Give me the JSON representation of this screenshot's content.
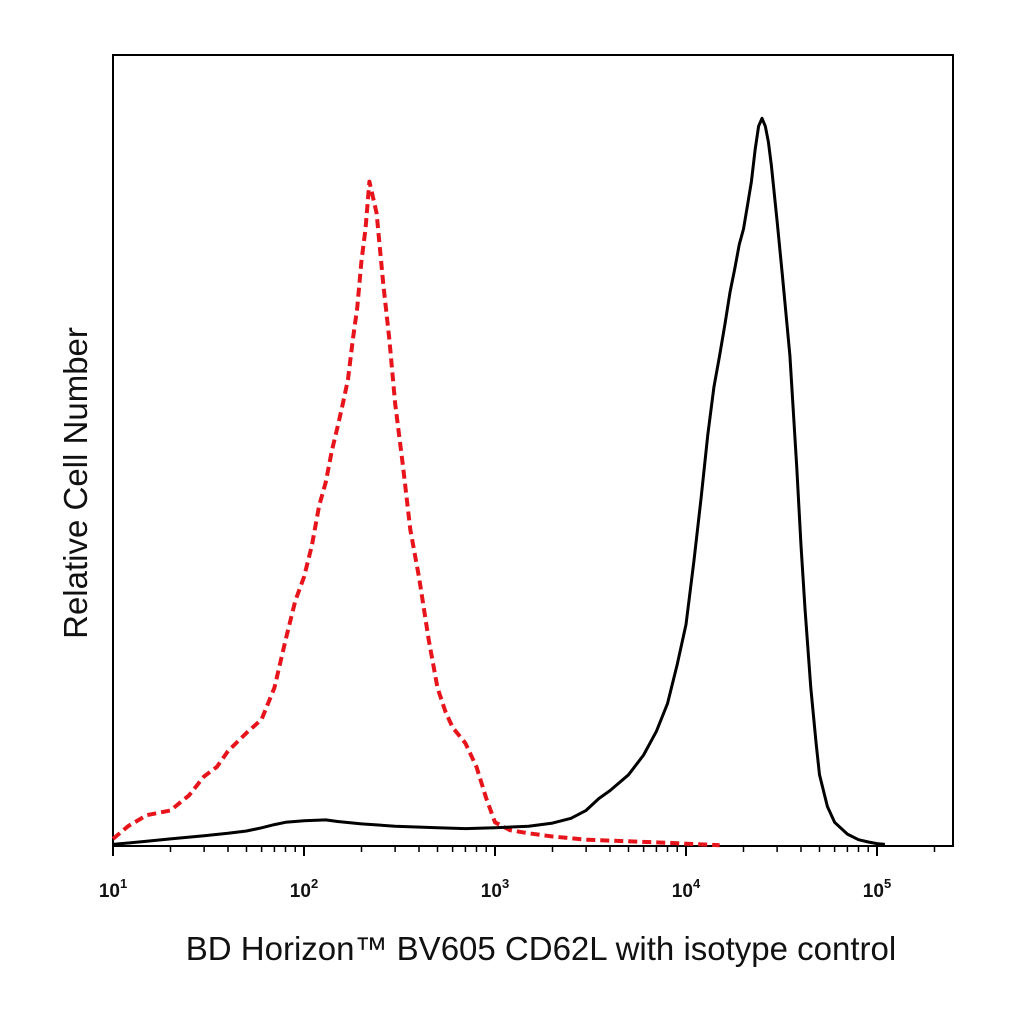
{
  "chart_data": {
    "type": "line",
    "title": "",
    "xlabel": "BD Horizon™ BV605 CD62L with isotype control",
    "ylabel": "Relative Cell Number",
    "x_scale": "log",
    "xlim": [
      10,
      250000
    ],
    "ylim": [
      0,
      100
    ],
    "y_ticks": [],
    "x_ticks": [
      {
        "base": "10",
        "exp": "1",
        "value": 10
      },
      {
        "base": "10",
        "exp": "2",
        "value": 100
      },
      {
        "base": "10",
        "exp": "3",
        "value": 1000
      },
      {
        "base": "10",
        "exp": "4",
        "value": 10000
      },
      {
        "base": "10",
        "exp": "5",
        "value": 100000
      }
    ],
    "grid": false,
    "legend": "none",
    "series": [
      {
        "style": "dashed",
        "color": "#e8141b",
        "x": [
          10,
          12,
          15,
          20,
          25,
          30,
          35,
          40,
          50,
          60,
          70,
          80,
          90,
          100,
          110,
          120,
          130,
          140,
          150,
          160,
          170,
          180,
          190,
          200,
          210,
          220,
          240,
          260,
          280,
          300,
          330,
          360,
          400,
          450,
          500,
          550,
          600,
          700,
          800,
          900,
          1000,
          1200,
          1500,
          2000,
          3000,
          5000,
          8000,
          12000,
          15000
        ],
        "y": [
          0.9,
          2.5,
          3.9,
          4.5,
          6.4,
          8.8,
          10.0,
          12.0,
          14.3,
          16.0,
          20.0,
          26.0,
          31.0,
          34.0,
          38.0,
          43.0,
          46.0,
          50.0,
          53.0,
          56.0,
          59.0,
          64.0,
          68.0,
          74.0,
          78.0,
          84.0,
          80.0,
          71.0,
          64.0,
          56.0,
          48.0,
          40.0,
          34.0,
          26.0,
          20.0,
          17.0,
          15.0,
          13.0,
          10.0,
          6.0,
          3.0,
          2.0,
          1.6,
          1.2,
          0.8,
          0.6,
          0.4,
          0.2,
          0.1
        ]
      },
      {
        "style": "solid",
        "color": "#000000",
        "x": [
          10,
          15,
          20,
          30,
          40,
          50,
          60,
          70,
          80,
          100,
          130,
          150,
          200,
          300,
          500,
          700,
          1000,
          1500,
          2000,
          2500,
          3000,
          3500,
          4000,
          5000,
          6000,
          7000,
          8000,
          9000,
          10000,
          11000,
          12000,
          13000,
          14000,
          15000,
          16000,
          17000,
          18000,
          19000,
          20000,
          21000,
          22000,
          23000,
          24000,
          25000,
          26000,
          27000,
          28000,
          30000,
          32000,
          35000,
          38000,
          40000,
          42000,
          45000,
          48000,
          50000,
          55000,
          60000,
          70000,
          80000,
          90000,
          100000,
          110000
        ],
        "y": [
          0.2,
          0.6,
          0.9,
          1.3,
          1.6,
          1.9,
          2.3,
          2.7,
          3.0,
          3.2,
          3.3,
          3.1,
          2.8,
          2.5,
          2.3,
          2.2,
          2.3,
          2.5,
          2.9,
          3.5,
          4.5,
          6.0,
          7.0,
          9.0,
          11.5,
          14.5,
          18.0,
          23.0,
          28.0,
          36.0,
          44.0,
          52.0,
          58.0,
          62.0,
          66.0,
          70.0,
          73.0,
          76.0,
          78.0,
          81.0,
          84.0,
          88.0,
          91.0,
          92.0,
          91.0,
          89.0,
          86.0,
          79.0,
          72.0,
          62.0,
          48.0,
          38.0,
          30.0,
          20.0,
          13.0,
          9.0,
          5.0,
          3.0,
          1.5,
          0.8,
          0.5,
          0.3,
          0.2
        ]
      }
    ]
  }
}
